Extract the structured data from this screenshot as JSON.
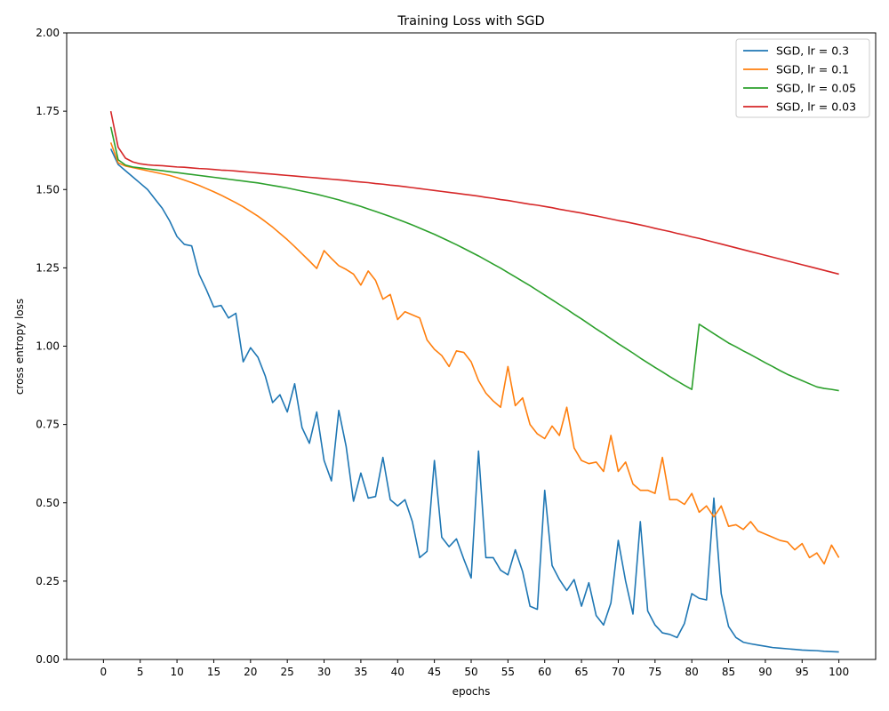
{
  "chart_data": {
    "type": "line",
    "title": "Training Loss with SGD",
    "xlabel": "epochs",
    "ylabel": "cross entropy loss",
    "xlim": [
      -5,
      105
    ],
    "ylim": [
      0,
      2
    ],
    "xticks": [
      0,
      5,
      10,
      15,
      20,
      25,
      30,
      35,
      40,
      45,
      50,
      55,
      60,
      65,
      70,
      75,
      80,
      85,
      90,
      95,
      100
    ],
    "yticks": [
      0.0,
      0.25,
      0.5,
      0.75,
      1.0,
      1.25,
      1.5,
      1.75,
      2.0
    ],
    "ytick_labels": [
      "0.00",
      "0.25",
      "0.50",
      "0.75",
      "1.00",
      "1.25",
      "1.50",
      "1.75",
      "2.00"
    ],
    "grid": false,
    "legend_position": "top-right",
    "x": [
      1,
      2,
      3,
      4,
      5,
      6,
      7,
      8,
      9,
      10,
      11,
      12,
      13,
      14,
      15,
      16,
      17,
      18,
      19,
      20,
      21,
      22,
      23,
      24,
      25,
      26,
      27,
      28,
      29,
      30,
      31,
      32,
      33,
      34,
      35,
      36,
      37,
      38,
      39,
      40,
      41,
      42,
      43,
      44,
      45,
      46,
      47,
      48,
      49,
      50,
      51,
      52,
      53,
      54,
      55,
      56,
      57,
      58,
      59,
      60,
      61,
      62,
      63,
      64,
      65,
      66,
      67,
      68,
      69,
      70,
      71,
      72,
      73,
      74,
      75,
      76,
      77,
      78,
      79,
      80,
      81,
      82,
      83,
      84,
      85,
      86,
      87,
      88,
      89,
      90,
      91,
      92,
      93,
      94,
      95,
      96,
      97,
      98,
      99,
      100
    ],
    "series": [
      {
        "name": "SGD, lr = 0.3",
        "color": "#1f77b4",
        "values": [
          1.63,
          1.58,
          1.56,
          1.54,
          1.52,
          1.5,
          1.47,
          1.44,
          1.4,
          1.35,
          1.325,
          1.32,
          1.23,
          1.18,
          1.125,
          1.13,
          1.09,
          1.105,
          0.95,
          0.995,
          0.965,
          0.905,
          0.82,
          0.845,
          0.79,
          0.88,
          0.74,
          0.69,
          0.79,
          0.635,
          0.57,
          0.795,
          0.68,
          0.505,
          0.595,
          0.515,
          0.52,
          0.645,
          0.51,
          0.49,
          0.51,
          0.44,
          0.325,
          0.345,
          0.635,
          0.39,
          0.36,
          0.385,
          0.32,
          0.26,
          0.665,
          0.325,
          0.325,
          0.285,
          0.27,
          0.35,
          0.28,
          0.17,
          0.16,
          0.54,
          0.3,
          0.255,
          0.22,
          0.255,
          0.17,
          0.245,
          0.14,
          0.11,
          0.18,
          0.38,
          0.25,
          0.145,
          0.44,
          0.155,
          0.11,
          0.085,
          0.08,
          0.07,
          0.115,
          0.21,
          0.195,
          0.19,
          0.515,
          0.21,
          0.105,
          0.07,
          0.055,
          0.05,
          0.046,
          0.042,
          0.038,
          0.036,
          0.034,
          0.032,
          0.03,
          0.029,
          0.028,
          0.026,
          0.025,
          0.024
        ]
      },
      {
        "name": "SGD, lr = 0.1",
        "color": "#ff7f0e",
        "values": [
          1.65,
          1.585,
          1.575,
          1.57,
          1.565,
          1.56,
          1.555,
          1.55,
          1.545,
          1.538,
          1.53,
          1.522,
          1.513,
          1.503,
          1.493,
          1.482,
          1.47,
          1.458,
          1.445,
          1.43,
          1.415,
          1.398,
          1.38,
          1.36,
          1.34,
          1.318,
          1.295,
          1.272,
          1.248,
          1.305,
          1.28,
          1.257,
          1.245,
          1.23,
          1.195,
          1.24,
          1.21,
          1.15,
          1.165,
          1.085,
          1.11,
          1.1,
          1.09,
          1.02,
          0.99,
          0.97,
          0.935,
          0.985,
          0.98,
          0.95,
          0.89,
          0.85,
          0.825,
          0.805,
          0.935,
          0.81,
          0.835,
          0.75,
          0.72,
          0.705,
          0.745,
          0.715,
          0.805,
          0.675,
          0.635,
          0.625,
          0.63,
          0.6,
          0.715,
          0.6,
          0.63,
          0.56,
          0.54,
          0.54,
          0.53,
          0.645,
          0.51,
          0.51,
          0.495,
          0.53,
          0.47,
          0.49,
          0.455,
          0.49,
          0.425,
          0.43,
          0.415,
          0.44,
          0.41,
          0.4,
          0.39,
          0.38,
          0.375,
          0.35,
          0.37,
          0.325,
          0.34,
          0.305,
          0.365,
          0.325
        ]
      },
      {
        "name": "SGD, lr = 0.05",
        "color": "#2ca02c",
        "values": [
          1.7,
          1.595,
          1.578,
          1.572,
          1.569,
          1.566,
          1.563,
          1.56,
          1.557,
          1.554,
          1.551,
          1.548,
          1.545,
          1.542,
          1.539,
          1.536,
          1.533,
          1.53,
          1.527,
          1.524,
          1.521,
          1.517,
          1.513,
          1.509,
          1.505,
          1.5,
          1.495,
          1.49,
          1.485,
          1.479,
          1.473,
          1.467,
          1.46,
          1.453,
          1.446,
          1.438,
          1.43,
          1.422,
          1.414,
          1.405,
          1.396,
          1.387,
          1.377,
          1.367,
          1.357,
          1.346,
          1.335,
          1.324,
          1.312,
          1.3,
          1.288,
          1.275,
          1.262,
          1.249,
          1.235,
          1.221,
          1.207,
          1.193,
          1.178,
          1.163,
          1.148,
          1.133,
          1.118,
          1.102,
          1.087,
          1.071,
          1.055,
          1.04,
          1.024,
          1.008,
          0.993,
          0.978,
          0.962,
          0.947,
          0.932,
          0.918,
          0.903,
          0.889,
          0.875,
          0.862,
          1.07,
          1.055,
          1.04,
          1.025,
          1.01,
          0.998,
          0.985,
          0.973,
          0.96,
          0.947,
          0.935,
          0.922,
          0.91,
          0.9,
          0.89,
          0.88,
          0.87,
          0.865,
          0.862,
          0.858
        ]
      },
      {
        "name": "SGD, lr = 0.03",
        "color": "#d62728",
        "values": [
          1.75,
          1.635,
          1.6,
          1.588,
          1.582,
          1.579,
          1.577,
          1.576,
          1.574,
          1.572,
          1.571,
          1.569,
          1.567,
          1.566,
          1.564,
          1.562,
          1.561,
          1.559,
          1.557,
          1.555,
          1.553,
          1.551,
          1.549,
          1.547,
          1.545,
          1.543,
          1.541,
          1.539,
          1.537,
          1.535,
          1.533,
          1.531,
          1.529,
          1.526,
          1.524,
          1.522,
          1.519,
          1.517,
          1.514,
          1.512,
          1.509,
          1.506,
          1.503,
          1.5,
          1.497,
          1.494,
          1.491,
          1.488,
          1.485,
          1.482,
          1.479,
          1.475,
          1.472,
          1.468,
          1.465,
          1.461,
          1.457,
          1.453,
          1.45,
          1.446,
          1.442,
          1.437,
          1.433,
          1.429,
          1.425,
          1.42,
          1.416,
          1.411,
          1.406,
          1.401,
          1.397,
          1.392,
          1.387,
          1.382,
          1.376,
          1.371,
          1.366,
          1.36,
          1.355,
          1.349,
          1.344,
          1.338,
          1.332,
          1.326,
          1.32,
          1.314,
          1.308,
          1.302,
          1.296,
          1.29,
          1.284,
          1.278,
          1.272,
          1.266,
          1.26,
          1.254,
          1.248,
          1.242,
          1.236,
          1.23
        ]
      }
    ]
  }
}
